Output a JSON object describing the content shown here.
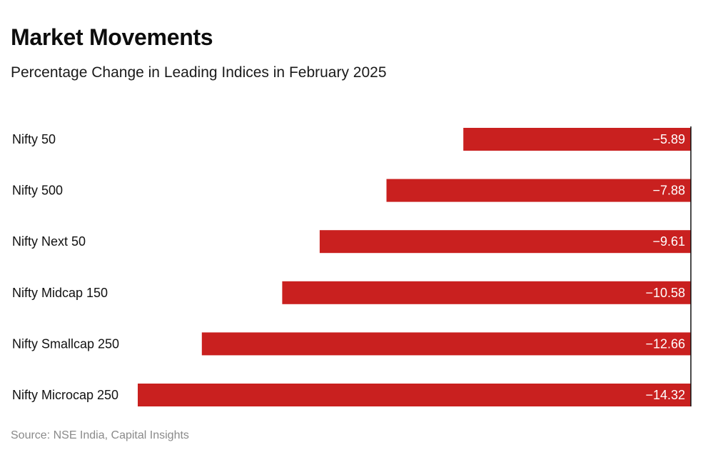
{
  "header": {
    "title": "Market Movements",
    "subtitle": "Percentage Change in Leading Indices in February 2025"
  },
  "footer": {
    "source": "Source: NSE India, Capital Insights"
  },
  "colors": {
    "bar": "#c9201f",
    "axis": "#111111"
  },
  "chart_data": {
    "type": "bar",
    "orientation": "horizontal",
    "title": "Market Movements",
    "subtitle": "Percentage Change in Leading Indices in February 2025",
    "xlabel": "",
    "ylabel": "",
    "categories": [
      "Nifty 50",
      "Nifty 500",
      "Nifty Next 50",
      "Nifty Midcap 150",
      "Nifty Smallcap 250",
      "Nifty Microcap 250"
    ],
    "values": [
      -5.89,
      -7.88,
      -9.61,
      -10.58,
      -12.66,
      -14.32
    ],
    "value_labels": [
      "−5.89",
      "−7.88",
      "−9.61",
      "−10.58",
      "−12.66",
      "−14.32"
    ],
    "xlim": [
      -14.32,
      0
    ],
    "grid": false,
    "legend": "none"
  }
}
